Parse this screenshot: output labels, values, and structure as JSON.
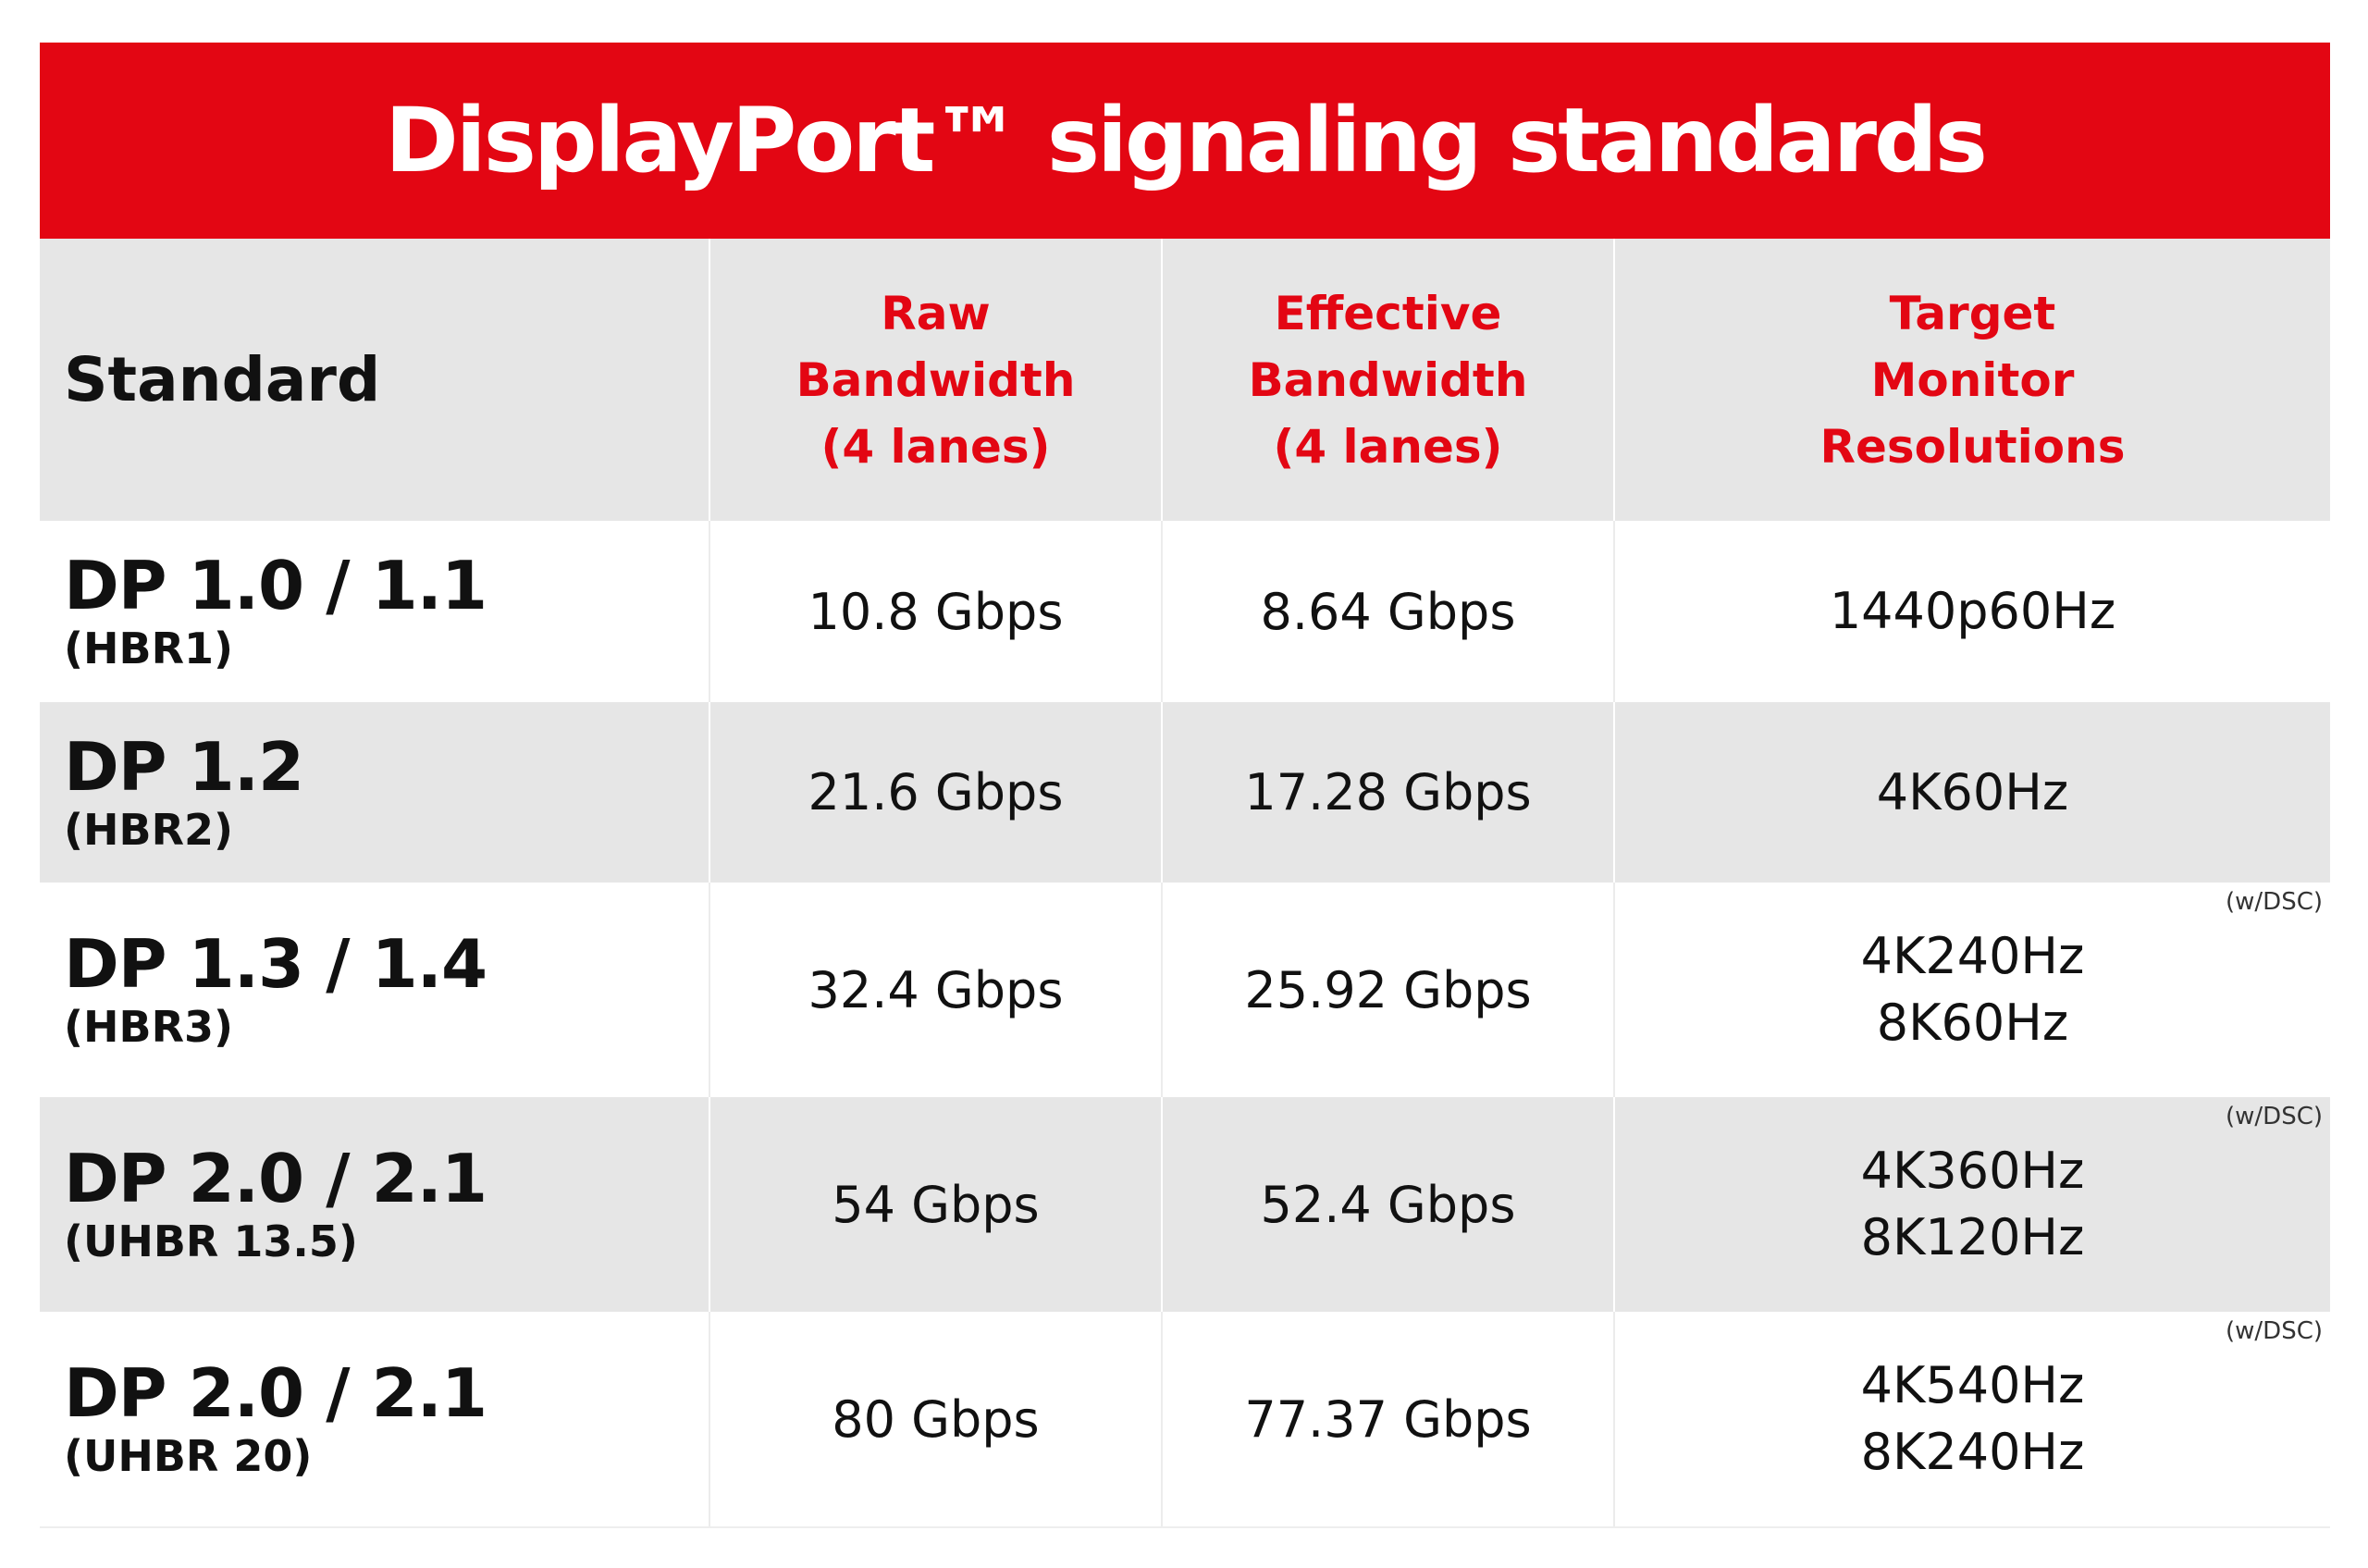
{
  "title": "DisplayPort™ signaling standards",
  "headers": {
    "standard": "Standard",
    "raw": [
      "Raw",
      "Bandwidth",
      "(4 lanes)"
    ],
    "effective": [
      "Effective",
      "Bandwidth",
      "(4 lanes)"
    ],
    "target": [
      "Target",
      "Monitor",
      "Resolutions"
    ]
  },
  "rows": [
    {
      "name": "DP 1.0 / 1.1",
      "sub": "(HBR1)",
      "raw": "10.8 Gbps",
      "effective": "8.64 Gbps",
      "resolutions": [
        "1440p60Hz"
      ],
      "note": ""
    },
    {
      "name": "DP 1.2",
      "sub": "(HBR2)",
      "raw": "21.6 Gbps",
      "effective": "17.28 Gbps",
      "resolutions": [
        "4K60Hz"
      ],
      "note": ""
    },
    {
      "name": "DP 1.3 / 1.4",
      "sub": "(HBR3)",
      "raw": "32.4 Gbps",
      "effective": "25.92 Gbps",
      "resolutions": [
        "4K240Hz",
        "8K60Hz"
      ],
      "note": "(w/DSC)"
    },
    {
      "name": "DP 2.0 / 2.1",
      "sub": "(UHBR 13.5)",
      "raw": "54 Gbps",
      "effective": "52.4 Gbps",
      "resolutions": [
        "4K360Hz",
        "8K120Hz"
      ],
      "note": "(w/DSC)"
    },
    {
      "name": "DP 2.0 / 2.1",
      "sub": "(UHBR 20)",
      "raw": "80 Gbps",
      "effective": "77.37 Gbps",
      "resolutions": [
        "4K540Hz",
        "8K240Hz"
      ],
      "note": "(w/DSC)"
    }
  ],
  "colors": {
    "accent": "#e30613",
    "band": "#e6e6e6",
    "text": "#111111"
  }
}
